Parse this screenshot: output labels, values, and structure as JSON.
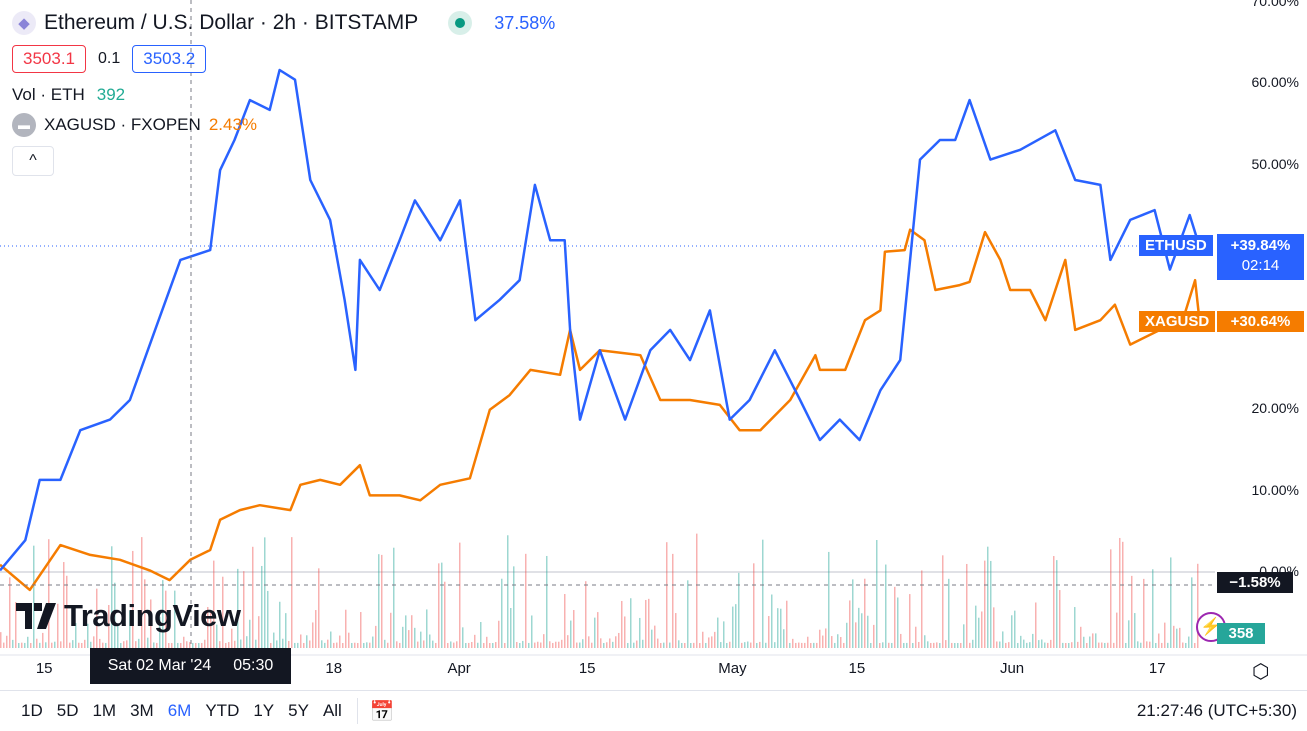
{
  "header": {
    "title": "Ethereum / U.S. Dollar · 2h · BITSTAMP",
    "change": "37.58%",
    "bid": "3503.1",
    "spread": "0.1",
    "ask": "3503.2",
    "vol_label": "Vol · ETH",
    "vol_value": "392",
    "compare_label": "XAGUSD · FXOPEN",
    "compare_change": "2.43%",
    "collapse": "^"
  },
  "yaxis": {
    "labels": [
      {
        "text": "70.00%",
        "v": 70
      },
      {
        "text": "60.00%",
        "v": 60
      },
      {
        "text": "50.00%",
        "v": 50
      },
      {
        "text": "20.00%",
        "v": 20
      },
      {
        "text": "10.00%",
        "v": 10
      },
      {
        "text": "0.00%",
        "v": 0
      }
    ]
  },
  "tags": {
    "eth_name": "ETHUSD",
    "eth_value": "+39.84%",
    "eth_countdown": "02:14",
    "xag_name": "XAGUSD",
    "xag_value": "+30.64%",
    "crosshair_value": "−1.58%",
    "volume_value": "358"
  },
  "xaxis": {
    "labels": [
      {
        "text": "15",
        "d": 4.9
      },
      {
        "text": "18",
        "d": 37
      },
      {
        "text": "Apr",
        "d": 50.9
      },
      {
        "text": "15",
        "d": 65.1
      },
      {
        "text": "May",
        "d": 81.2
      },
      {
        "text": "15",
        "d": 95
      },
      {
        "text": "Jun",
        "d": 112.2
      },
      {
        "text": "17",
        "d": 128.3
      }
    ],
    "crosshair_date": "Sat 02 Mar '24",
    "crosshair_time": "05:30"
  },
  "logo": "TradingView",
  "toolbar": {
    "timeframes": [
      "1D",
      "5D",
      "1M",
      "3M",
      "6M",
      "YTD",
      "1Y",
      "5Y",
      "All"
    ],
    "active": "6M",
    "clock": "21:27:46 (UTC+5:30)"
  },
  "colors": {
    "eth": "#2962ff",
    "xag": "#f57c00",
    "up": "#26a69a",
    "down": "#ef5350"
  },
  "chart_data": {
    "type": "line",
    "x_unit": "days",
    "y_unit": "% change",
    "ylim": [
      -5,
      70
    ],
    "crosshair": {
      "day": 21.2,
      "value": -1.58
    },
    "series": [
      {
        "name": "ETHUSD",
        "last": 39.84,
        "points": [
          [
            0,
            0.2
          ],
          [
            2.8,
            3.9
          ],
          [
            4.4,
            11.3
          ],
          [
            6.7,
            11.3
          ],
          [
            8.9,
            17.4
          ],
          [
            12.2,
            18.7
          ],
          [
            14.4,
            21.1
          ],
          [
            17.2,
            29.7
          ],
          [
            20,
            38.3
          ],
          [
            23.3,
            39.5
          ],
          [
            24.4,
            49.3
          ],
          [
            26,
            53
          ],
          [
            27.7,
            57.9
          ],
          [
            29.9,
            56.7
          ],
          [
            31,
            61.6
          ],
          [
            32.7,
            60.4
          ],
          [
            34.4,
            48.1
          ],
          [
            36.6,
            43.2
          ],
          [
            38.2,
            33.4
          ],
          [
            39.4,
            24.8
          ],
          [
            39.9,
            38.3
          ],
          [
            42.1,
            34.6
          ],
          [
            44.3,
            40.7
          ],
          [
            46,
            45.6
          ],
          [
            48.8,
            40.7
          ],
          [
            51,
            45.6
          ],
          [
            52.7,
            30.9
          ],
          [
            55.4,
            33.4
          ],
          [
            57.6,
            35.8
          ],
          [
            59.3,
            47.5
          ],
          [
            61,
            40.7
          ],
          [
            62.6,
            40.7
          ],
          [
            63.2,
            29.7
          ],
          [
            64.3,
            18.7
          ],
          [
            66.5,
            27.2
          ],
          [
            69.3,
            18.7
          ],
          [
            72.1,
            27.2
          ],
          [
            74.3,
            29.7
          ],
          [
            76.5,
            26
          ],
          [
            78.7,
            32.1
          ],
          [
            80.9,
            18.7
          ],
          [
            83.1,
            21.1
          ],
          [
            85.9,
            27.2
          ],
          [
            88.7,
            21.1
          ],
          [
            90.9,
            16.2
          ],
          [
            93.1,
            18.7
          ],
          [
            95.3,
            16.2
          ],
          [
            97.6,
            22.3
          ],
          [
            99.8,
            26
          ],
          [
            100.9,
            38.3
          ],
          [
            102,
            50.6
          ],
          [
            104.2,
            53
          ],
          [
            105.9,
            53
          ],
          [
            107.5,
            57.9
          ],
          [
            109.8,
            50.6
          ],
          [
            113.1,
            51.8
          ],
          [
            117,
            54.2
          ],
          [
            119.2,
            48.1
          ],
          [
            122,
            47.5
          ],
          [
            123.1,
            38.3
          ],
          [
            125.3,
            43.2
          ],
          [
            128,
            44.4
          ],
          [
            129.7,
            37.1
          ],
          [
            131.9,
            43.8
          ],
          [
            133,
            39.84
          ]
        ]
      },
      {
        "name": "XAGUSD",
        "last": 30.64,
        "points": [
          [
            0,
            0.9
          ],
          [
            3.3,
            -2.2
          ],
          [
            6.7,
            3.3
          ],
          [
            10,
            2.1
          ],
          [
            13.3,
            1.5
          ],
          [
            16.6,
            0.2
          ],
          [
            18.8,
            -1
          ],
          [
            21.1,
            1.5
          ],
          [
            23.3,
            2.7
          ],
          [
            24.4,
            6.4
          ],
          [
            26.6,
            7.6
          ],
          [
            28.8,
            8.2
          ],
          [
            32.2,
            7.6
          ],
          [
            33.3,
            10.7
          ],
          [
            35.5,
            11.3
          ],
          [
            37.7,
            10.7
          ],
          [
            39.9,
            13.1
          ],
          [
            41,
            9.4
          ],
          [
            44.3,
            9.4
          ],
          [
            46.6,
            8.8
          ],
          [
            48.8,
            10.7
          ],
          [
            52.1,
            11.5
          ],
          [
            54.3,
            19.9
          ],
          [
            56.5,
            21.7
          ],
          [
            58.8,
            24.8
          ],
          [
            62.1,
            24.2
          ],
          [
            63.2,
            29.7
          ],
          [
            64.3,
            24.8
          ],
          [
            66.5,
            27.2
          ],
          [
            71,
            26.6
          ],
          [
            73.2,
            21.1
          ],
          [
            76.5,
            21.1
          ],
          [
            79.8,
            20.5
          ],
          [
            82,
            17.4
          ],
          [
            84.3,
            17.4
          ],
          [
            87.6,
            21.1
          ],
          [
            90.4,
            26.6
          ],
          [
            90.9,
            24.8
          ],
          [
            93.7,
            24.8
          ],
          [
            95.9,
            30.9
          ],
          [
            97.6,
            32.1
          ],
          [
            98.1,
            39.3
          ],
          [
            100.3,
            39.5
          ],
          [
            100.9,
            42
          ],
          [
            102.5,
            40.7
          ],
          [
            103.7,
            34.6
          ],
          [
            106.4,
            35.2
          ],
          [
            107.5,
            35.6
          ],
          [
            109.2,
            41.7
          ],
          [
            110.9,
            38.3
          ],
          [
            112,
            34.6
          ],
          [
            114.2,
            34.6
          ],
          [
            115.9,
            30.9
          ],
          [
            118.1,
            38.3
          ],
          [
            119.2,
            29.7
          ],
          [
            122,
            30.9
          ],
          [
            123.6,
            32.8
          ],
          [
            125.3,
            27.9
          ],
          [
            128.6,
            29.7
          ],
          [
            130.8,
            29.7
          ],
          [
            132.5,
            35.8
          ],
          [
            133,
            30.64
          ]
        ]
      }
    ]
  }
}
